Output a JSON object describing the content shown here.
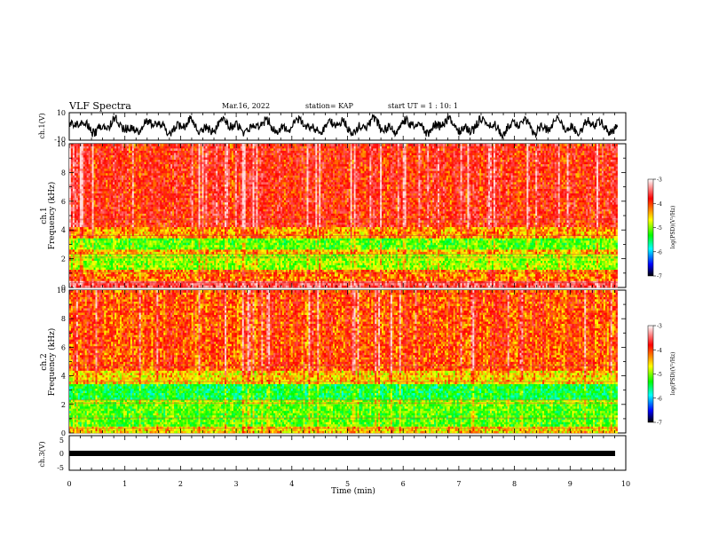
{
  "header": {
    "title": "VLF Spectra",
    "date": "Mar.16, 2022",
    "station": "station= KAP",
    "start": "start UT =  1 : 10: 1"
  },
  "panels": {
    "ch1_wave": {
      "ylabel": "ch.1(V)",
      "ymax_label": "10",
      "ymin_label": "-10"
    },
    "ch1_spec": {
      "ylabel_top": "ch.1",
      "ylabel_bottom": "Frequency (kHz)",
      "ticks": [
        "0",
        "2",
        "4",
        "6",
        "8",
        "10"
      ]
    },
    "ch2_spec": {
      "ylabel_top": "ch.2",
      "ylabel_bottom": "Frequency (kHz)",
      "ticks": [
        "0",
        "2",
        "4",
        "6",
        "8",
        "10"
      ]
    },
    "ch3_wave": {
      "ylabel": "ch.3(V)",
      "ymax_label": "5",
      "ymid_label": "0",
      "ymin_label": "-5"
    }
  },
  "colorbar": {
    "label": "log(PSD)(V²/Hz)",
    "ticks": [
      "-3",
      "-4",
      "-5",
      "-6",
      "-7"
    ],
    "colors": [
      "#ffffff",
      "#ff0000",
      "#ffff00",
      "#00ff00",
      "#00ffff",
      "#0000ff",
      "#000000"
    ]
  },
  "xaxis": {
    "label": "Time (min)",
    "ticks": [
      "0",
      "1",
      "2",
      "3",
      "4",
      "5",
      "6",
      "7",
      "8",
      "9",
      "10"
    ]
  },
  "chart_data": [
    {
      "type": "line",
      "name": "ch.1 waveform",
      "ylabel": "ch.1(V)",
      "ylim": [
        -10,
        10
      ],
      "xlim": [
        0,
        10
      ],
      "x_unit": "min"
    },
    {
      "type": "heatmap",
      "ylabel": "Frequency (kHz)",
      "ylim": [
        0,
        10
      ],
      "xlim": [
        0,
        9.85
      ],
      "colorbar_range": [
        -7,
        -3
      ],
      "colorbar_label": "log(PSD)(V²/Hz)",
      "bands": [
        {
          "from_khz": 0,
          "to_khz": 0.4,
          "log_psd": -3.6
        },
        {
          "from_khz": 0.4,
          "to_khz": 1.2,
          "log_psd": -4.3
        },
        {
          "from_khz": 1.2,
          "to_khz": 2.3,
          "log_psd": -5.0
        },
        {
          "from_khz": 2.3,
          "to_khz": 2.6,
          "log_psd": -4.5
        },
        {
          "from_khz": 2.6,
          "to_khz": 3.5,
          "log_psd": -5.2
        },
        {
          "from_khz": 3.5,
          "to_khz": 4.2,
          "log_psd": -4.4
        },
        {
          "from_khz": 4.2,
          "to_khz": 10,
          "log_psd": -3.9
        }
      ]
    },
    {
      "type": "heatmap",
      "ylabel": "Frequency (kHz)",
      "ylim": [
        0,
        10
      ],
      "xlim": [
        0,
        9.85
      ],
      "colorbar_range": [
        -7,
        -3
      ],
      "colorbar_label": "log(PSD)(V²/Hz)",
      "bands": [
        {
          "from_khz": 0,
          "to_khz": 0.4,
          "log_psd": -4.6
        },
        {
          "from_khz": 0.4,
          "to_khz": 2.0,
          "log_psd": -5.2
        },
        {
          "from_khz": 2.0,
          "to_khz": 2.3,
          "log_psd": -5.0
        },
        {
          "from_khz": 2.3,
          "to_khz": 3.4,
          "log_psd": -5.5
        },
        {
          "from_khz": 3.4,
          "to_khz": 4.3,
          "log_psd": -4.6
        },
        {
          "from_khz": 4.3,
          "to_khz": 10,
          "log_psd": -4.1
        }
      ]
    },
    {
      "type": "line",
      "name": "ch.3 waveform",
      "ylabel": "ch.3(V)",
      "ylim": [
        -5,
        5
      ],
      "xlim": [
        0,
        10
      ],
      "x_unit": "min"
    }
  ]
}
